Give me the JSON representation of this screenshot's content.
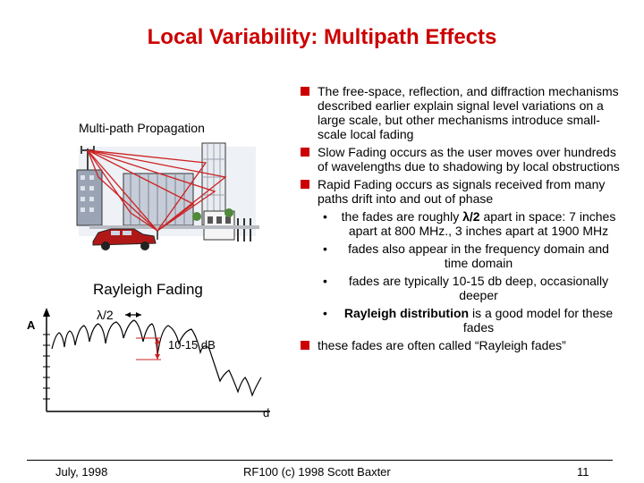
{
  "title": "Local Variability:  Multipath Effects",
  "left": {
    "multipath_label": "Multi-path Propagation",
    "rayleigh_label": "Rayleigh Fading",
    "plot": {
      "axis_y_label": "A",
      "axis_x_label": "d",
      "half_wavelength": "λ/2",
      "depth_label": "10-15 dB"
    }
  },
  "bullets": {
    "b1": "The free-space, reflection, and diffraction mechanisms described earlier explain signal level variations on a large scale, but other mechanisms introduce small-scale local fading",
    "b2": "Slow Fading occurs as the user moves over hundreds of wavelengths due to shadowing by local obstructions",
    "b3": "Rapid Fading occurs as signals received from many paths drift into and out of phase",
    "s1_pre": "the fades are roughly ",
    "s1_bold": "λ/2",
    "s1_post": " apart in space: 7 inches apart at 800 MHz., 3 inches apart at 1900 MHz",
    "s2": "fades also appear in the frequency domain and time domain",
    "s3": "fades are typically 10-15 db deep, occasionally deeper",
    "s4_bold": "Rayleigh distribution",
    "s4_post": " is a good model for these fades",
    "b4": "these fades are often called “Rayleigh fades”"
  },
  "footer": {
    "date": "July, 1998",
    "credit": "RF100 (c) 1998 Scott Baxter",
    "page": "11"
  },
  "colors": {
    "title": "#cc0000",
    "bullet": "#cc0000",
    "ray": "#cc2222"
  }
}
